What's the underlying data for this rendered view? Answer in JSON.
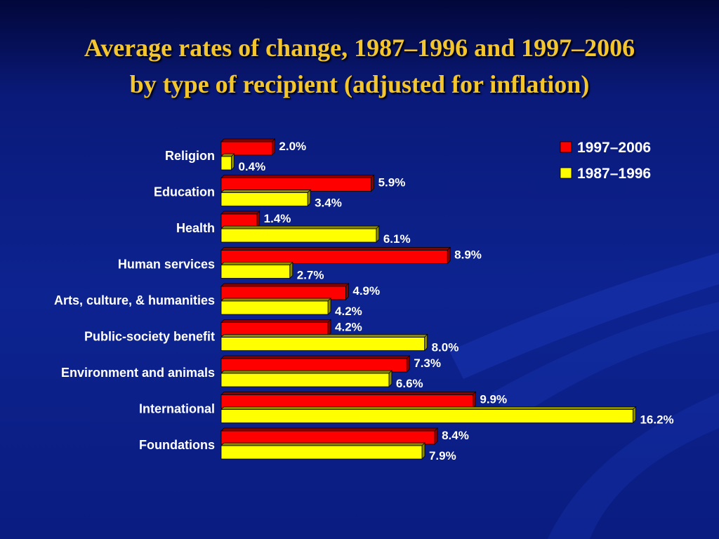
{
  "slide": {
    "title_line1": "Average rates of change, 1987–1996 and 1997–2006",
    "title_line2": "by type of recipient (adjusted for inflation)"
  },
  "colors": {
    "series_recent": "#ff0000",
    "series_recent_side": "#8a0000",
    "series_earlier": "#ffff00",
    "series_earlier_side": "#8a8a00",
    "title": "#f3c52f",
    "text": "#ffffff"
  },
  "chart_data": {
    "type": "bar",
    "orientation": "horizontal",
    "title": "Average rates of change, 1987–1996 and 1997–2006 by type of recipient (adjusted for inflation)",
    "categories": [
      "Religion",
      "Education",
      "Health",
      "Human services",
      "Arts, culture, & humanities",
      "Public-society benefit",
      "Environment and animals",
      "International",
      "Foundations"
    ],
    "series": [
      {
        "name": "1997–2006",
        "values": [
          2.0,
          5.9,
          1.4,
          8.9,
          4.9,
          4.2,
          7.3,
          9.9,
          8.4
        ],
        "labels": [
          "2.0%",
          "5.9%",
          "1.4%",
          "8.9%",
          "4.9%",
          "4.2%",
          "7.3%",
          "9.9%",
          "8.4%"
        ]
      },
      {
        "name": "1987–1996",
        "values": [
          0.4,
          3.4,
          6.1,
          2.7,
          4.2,
          8.0,
          6.6,
          16.2,
          7.9
        ],
        "labels": [
          "0.4%",
          "3.4%",
          "6.1%",
          "2.7%",
          "4.2%",
          "8.0%",
          "6.6%",
          "16.2%",
          "7.9%"
        ]
      }
    ],
    "unit": "%",
    "xlim": [
      0,
      16.2
    ],
    "grid": false,
    "legend": "top-right",
    "style": "3d"
  }
}
